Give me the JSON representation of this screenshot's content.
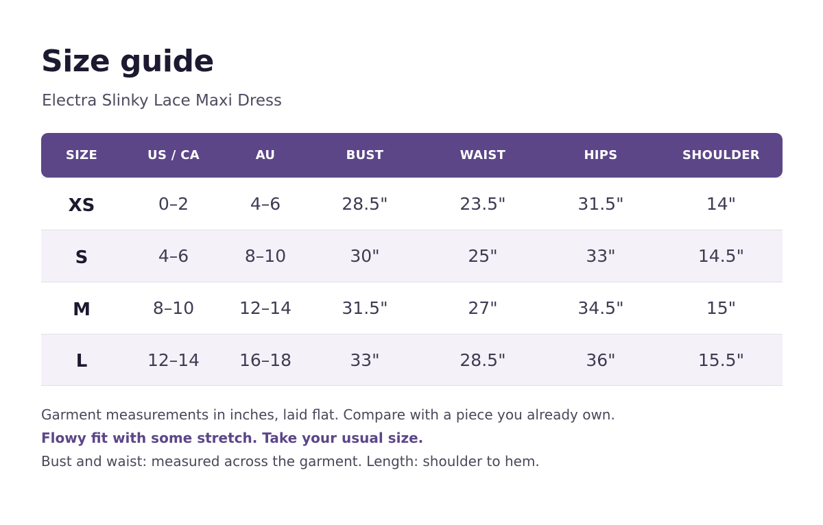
{
  "title": "Size guide",
  "subtitle": "Electra Slinky Lace Maxi Dress",
  "table": {
    "headers": [
      "SIZE",
      "US / CA",
      "AU",
      "BUST",
      "WAIST",
      "HIPS",
      "SHOULDER"
    ],
    "rows": [
      [
        "XS",
        "0–2",
        "4–6",
        "28.5\"",
        "23.5\"",
        "31.5\"",
        "14\""
      ],
      [
        "S",
        "4–6",
        "8–10",
        "30\"",
        "25\"",
        "33\"",
        "14.5\""
      ],
      [
        "M",
        "8–10",
        "12–14",
        "31.5\"",
        "27\"",
        "34.5\"",
        "15\""
      ],
      [
        "L",
        "12–14",
        "16–18",
        "33\"",
        "28.5\"",
        "36\"",
        "15.5\""
      ]
    ]
  },
  "notes": {
    "measurements": "Garment measurements in inches, laid flat. Compare with a piece you already own.",
    "fit": "Flowy fit with some stretch. Take your usual size.",
    "method": "Bust and waist: measured across the garment.  Length: shoulder to hem."
  },
  "colors": {
    "accent": "#5c4688",
    "alt_row": "#f4f2f8",
    "text": "#1c1a30"
  }
}
